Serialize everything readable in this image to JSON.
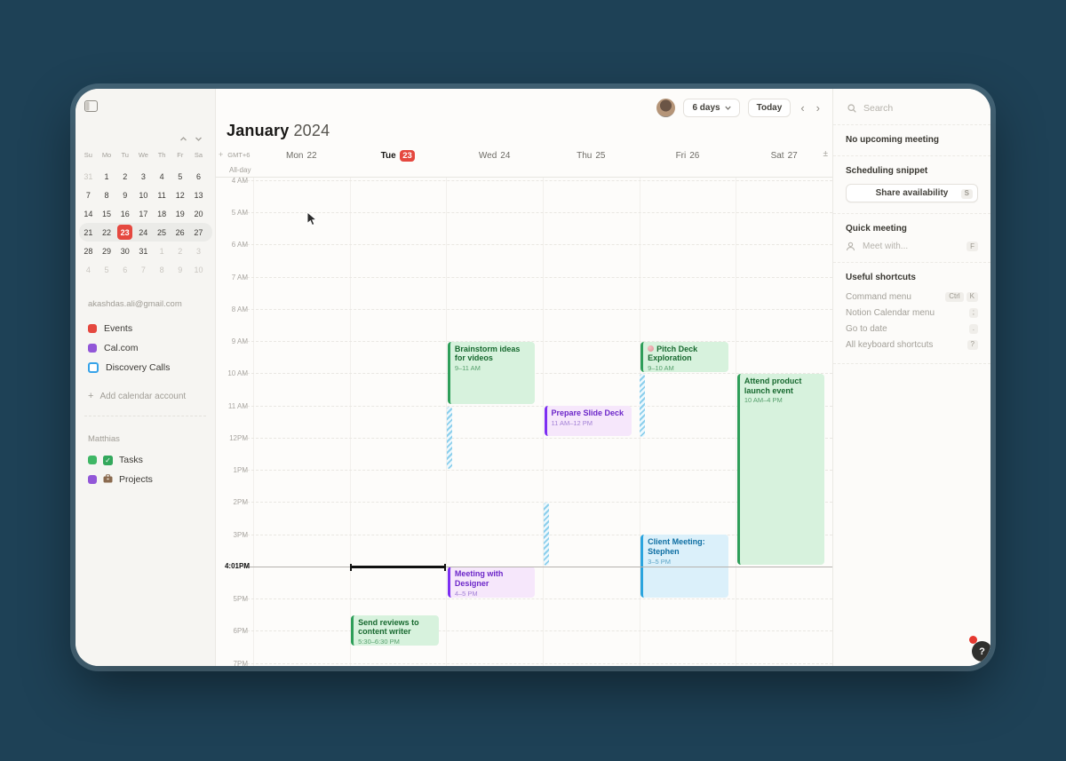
{
  "sidebar": {
    "mini_calendar": {
      "weekdays": [
        "Su",
        "Mo",
        "Tu",
        "We",
        "Th",
        "Fr",
        "Sa"
      ],
      "rows": [
        [
          {
            "n": 31,
            "o": 1
          },
          {
            "n": 1
          },
          {
            "n": 2
          },
          {
            "n": 3
          },
          {
            "n": 4
          },
          {
            "n": 5
          },
          {
            "n": 6
          }
        ],
        [
          {
            "n": 7
          },
          {
            "n": 8
          },
          {
            "n": 9
          },
          {
            "n": 10
          },
          {
            "n": 11
          },
          {
            "n": 12
          },
          {
            "n": 13
          }
        ],
        [
          {
            "n": 14
          },
          {
            "n": 15
          },
          {
            "n": 16
          },
          {
            "n": 17
          },
          {
            "n": 18
          },
          {
            "n": 19
          },
          {
            "n": 20
          }
        ],
        [
          {
            "n": 21
          },
          {
            "n": 22
          },
          {
            "n": 23,
            "sel": 1
          },
          {
            "n": 24
          },
          {
            "n": 25
          },
          {
            "n": 26
          },
          {
            "n": 27
          }
        ],
        [
          {
            "n": 28
          },
          {
            "n": 29
          },
          {
            "n": 30
          },
          {
            "n": 31
          },
          {
            "n": 1,
            "o": 1
          },
          {
            "n": 2,
            "o": 1
          },
          {
            "n": 3,
            "o": 1
          }
        ],
        [
          {
            "n": 4,
            "o": 1
          },
          {
            "n": 5,
            "o": 1
          },
          {
            "n": 6,
            "o": 1
          },
          {
            "n": 7,
            "o": 1
          },
          {
            "n": 8,
            "o": 1
          },
          {
            "n": 9,
            "o": 1
          },
          {
            "n": 10,
            "o": 1
          }
        ]
      ],
      "current_week_row": 3,
      "selected_day": 23
    },
    "account_email": "akashdas.ali@gmail.com",
    "calendars": [
      {
        "label": "Events",
        "color": "#e5483f",
        "style": "solid"
      },
      {
        "label": "Cal.com",
        "color": "#9257d8",
        "style": "solid"
      },
      {
        "label": "Discovery Calls",
        "color": "#37a3e8",
        "style": "ring"
      }
    ],
    "add_account_label": "Add calendar account",
    "workspace_name": "Matthias",
    "workspace_items": [
      {
        "label": "Tasks",
        "color": "#3fb765",
        "icon": "checkbox"
      },
      {
        "label": "Projects",
        "color": "#9257d8",
        "icon": "briefcase"
      }
    ]
  },
  "header": {
    "month": "January",
    "year": "2024",
    "view_label": "6 days",
    "today_label": "Today"
  },
  "calendar": {
    "timezone": "GMT+6",
    "all_day_label": "All-day",
    "expander": "±",
    "days": [
      {
        "name": "Mon",
        "num": "22"
      },
      {
        "name": "Tue",
        "num": "23",
        "today": true
      },
      {
        "name": "Wed",
        "num": "24"
      },
      {
        "name": "Thu",
        "num": "25"
      },
      {
        "name": "Fri",
        "num": "26"
      },
      {
        "name": "Sat",
        "num": "27"
      }
    ],
    "hour_labels": [
      {
        "h": 4,
        "t": "4 AM"
      },
      {
        "h": 5,
        "t": "5 AM"
      },
      {
        "h": 6,
        "t": "6 AM"
      },
      {
        "h": 7,
        "t": "7 AM"
      },
      {
        "h": 8,
        "t": "8 AM"
      },
      {
        "h": 9,
        "t": "9 AM"
      },
      {
        "h": 10,
        "t": "10 AM"
      },
      {
        "h": 11,
        "t": "11 AM"
      },
      {
        "h": 12,
        "t": "12PM"
      },
      {
        "h": 13,
        "t": "1PM"
      },
      {
        "h": 14,
        "t": "2PM"
      },
      {
        "h": 15,
        "t": "3PM"
      },
      {
        "h": 17,
        "t": "5PM"
      },
      {
        "h": 18,
        "t": "6PM"
      },
      {
        "h": 19,
        "t": "7PM"
      }
    ],
    "now": {
      "label": "4:01PM",
      "hour": 16.017,
      "day": 1
    },
    "events": [
      {
        "day": 1,
        "start": 17.5,
        "end": 18.5,
        "color": "green",
        "title": "Send reviews to content writer",
        "time": "5:30–6:30 PM"
      },
      {
        "day": 2,
        "start": 9,
        "end": 11,
        "color": "green",
        "title": "Brainstorm ideas for videos",
        "time": "9–11 AM"
      },
      {
        "day": 2,
        "start": 16,
        "end": 17,
        "color": "purple",
        "title": "Meeting with Designer",
        "time": "4–5 PM"
      },
      {
        "day": 3,
        "start": 11,
        "end": 12,
        "color": "purple",
        "title": "Prepare Slide Deck",
        "time": "11 AM–12 PM"
      },
      {
        "day": 4,
        "start": 9,
        "end": 10,
        "color": "green",
        "title": "Pitch Deck Exploration",
        "time": "9–10 AM",
        "emoji": true
      },
      {
        "day": 4,
        "start": 15,
        "end": 17,
        "color": "blue",
        "title": "Client Meeting: Stephen",
        "time": "3–5 PM"
      },
      {
        "day": 5,
        "start": 10,
        "end": 16,
        "color": "green",
        "title": "Attend product launch event",
        "time": "10 AM–4 PM"
      }
    ],
    "busy_strips": [
      {
        "day": 2,
        "start": 11,
        "end": 13
      },
      {
        "day": 3,
        "start": 14,
        "end": 16
      },
      {
        "day": 4,
        "start": 10,
        "end": 12
      }
    ]
  },
  "palette": {
    "green": {
      "bg": "#d7f2dd",
      "border": "#2e9e59",
      "title": "#17692f",
      "time": "#57a06d"
    },
    "purple": {
      "bg": "#f6e7fb",
      "border": "#7d2ff2",
      "title": "#6d28c9",
      "time": "#a381d6"
    },
    "blue": {
      "bg": "#dbf0fa",
      "border": "#2aa4de",
      "title": "#0f6fa3",
      "time": "#5ba3c6"
    }
  },
  "right_panel": {
    "search_placeholder": "Search",
    "upcoming_text": "No upcoming meeting",
    "scheduling_title": "Scheduling snippet",
    "share_button_label": "Share availability",
    "share_key": "S",
    "quick_title": "Quick meeting",
    "meet_placeholder": "Meet with...",
    "meet_key": "F",
    "shortcuts_title": "Useful shortcuts",
    "shortcuts": [
      {
        "label": "Command menu",
        "keys": [
          "Ctrl",
          "K"
        ]
      },
      {
        "label": "Notion Calendar menu",
        "keys": [
          ";"
        ]
      },
      {
        "label": "Go to date",
        "keys": [
          "."
        ]
      },
      {
        "label": "All keyboard shortcuts",
        "keys": [
          "?"
        ]
      }
    ]
  },
  "help_label": "?"
}
